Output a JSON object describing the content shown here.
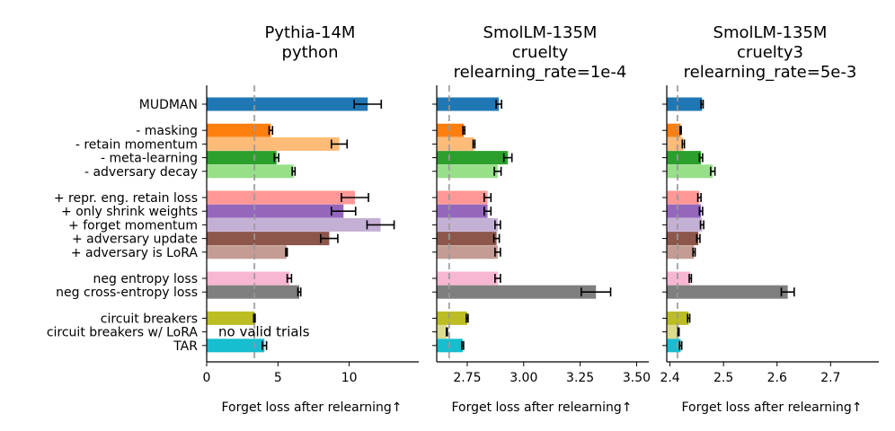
{
  "chart_data": {
    "type": "bar",
    "orientation": "horizontal",
    "categories": [
      "MUDMAN",
      "- masking",
      "- retain momentum",
      "- meta-learning",
      "- adversary decay",
      "+ repr. eng. retain loss",
      "+ only shrink weights",
      "+ forget momentum",
      "+ adversary update",
      "+ adversary is LoRA",
      "neg entropy loss",
      "neg cross-entropy loss",
      "circuit breakers",
      "circuit breakers w/ LoRA",
      "TAR"
    ],
    "category_groups": [
      1,
      4,
      5,
      2,
      3
    ],
    "colors": [
      "#1f77b4",
      "#ff7f0e",
      "#ffbb78",
      "#2ca02c",
      "#98df8a",
      "#ff9896",
      "#9467bd",
      "#c5b0d5",
      "#8c564b",
      "#c49c94",
      "#f7b6d2",
      "#7f7f7f",
      "#bcbd22",
      "#dbdb8d",
      "#17becf"
    ],
    "panels": [
      {
        "title": "Pythia-14M\npython",
        "xlabel": "Forget loss after relearning↑",
        "xlim": [
          0,
          14.5
        ],
        "xticks": [
          "0",
          "5",
          "10"
        ],
        "xtick_values": [
          0,
          5,
          10
        ],
        "reference_line": 3.35,
        "values": [
          11.3,
          4.5,
          9.3,
          4.9,
          6.1,
          10.4,
          9.6,
          12.2,
          8.6,
          5.6,
          5.8,
          6.5,
          3.35,
          null,
          4.05
        ],
        "errors": [
          0.95,
          0.12,
          0.55,
          0.15,
          0.1,
          0.95,
          0.85,
          0.95,
          0.6,
          0.05,
          0.15,
          0.1,
          0.05,
          null,
          0.15
        ],
        "annotation": "no valid trials"
      },
      {
        "title": "SmolLM-135M\ncruelty\nrelearning_rate=1e-4",
        "xlabel": "Forget loss after relearning↑",
        "xlim": [
          2.615,
          3.53
        ],
        "xticks": [
          "2.75",
          "3.00",
          "3.25",
          "3.50"
        ],
        "xtick_values": [
          2.75,
          3.0,
          3.25,
          3.5
        ],
        "reference_line": 2.67,
        "values": [
          2.89,
          2.735,
          2.78,
          2.93,
          2.885,
          2.84,
          2.84,
          2.885,
          2.88,
          2.885,
          2.885,
          3.32,
          2.75,
          2.66,
          2.73
        ],
        "errors": [
          0.012,
          0.004,
          0.004,
          0.018,
          0.015,
          0.015,
          0.015,
          0.012,
          0.012,
          0.012,
          0.012,
          0.065,
          0.004,
          0.002,
          0.004
        ]
      },
      {
        "title": "SmolLM-135M\ncruelty3\nrelearning_rate=5e-3",
        "xlabel": "Forget loss after relearning↑",
        "xlim": [
          2.394,
          2.78
        ],
        "xticks": [
          "2.4",
          "2.5",
          "2.6",
          "2.7"
        ],
        "xtick_values": [
          2.4,
          2.5,
          2.6,
          2.7
        ],
        "reference_line": 2.414,
        "values": [
          2.46,
          2.42,
          2.425,
          2.458,
          2.48,
          2.455,
          2.458,
          2.46,
          2.453,
          2.445,
          2.438,
          2.62,
          2.435,
          2.416,
          2.42
        ],
        "errors": [
          0.002,
          0.001,
          0.002,
          0.003,
          0.004,
          0.003,
          0.003,
          0.003,
          0.003,
          0.002,
          0.002,
          0.012,
          0.002,
          0.001,
          0.002
        ]
      }
    ]
  }
}
